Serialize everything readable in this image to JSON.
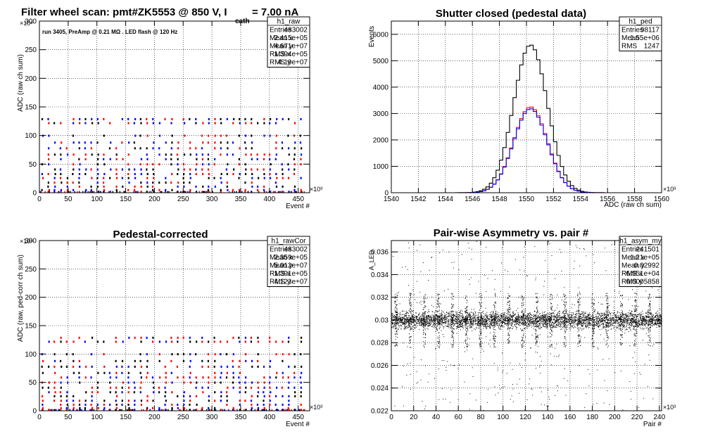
{
  "chart_data": [
    {
      "type": "scatter",
      "title_main": "Filter wheel scan: pmt#ZK5553 @   850 V, I",
      "title_sub": "cath",
      "title_tail": "  = 7.00 nA",
      "note": "run 3405, PreAmp @ 0.21 MΩ . LED flash @  120 Hz",
      "xlabel": "Event #",
      "ylabel": "ADC (raw ch sum)",
      "x_multiplier": "×10³",
      "y_multiplier": "×10⁶",
      "xlim": [
        0,
        470
      ],
      "ylim": [
        0,
        300
      ],
      "xticks": [
        0,
        50,
        100,
        150,
        200,
        250,
        300,
        350,
        400,
        450
      ],
      "yticks": [
        0,
        50,
        100,
        150,
        200,
        250,
        300
      ],
      "grid": true,
      "levels": [
        1,
        4,
        10,
        17,
        25,
        32,
        40,
        49,
        58,
        66,
        77,
        87,
        99,
        121,
        128
      ],
      "colors": [
        "#0000ff",
        "#ff0000",
        "#000000"
      ],
      "stats": {
        "name": "h1_raw",
        "rows": [
          [
            "Entries",
            "483002"
          ],
          [
            "Mean x",
            "2.415e+05"
          ],
          [
            "Mean y",
            "4.671e+07"
          ],
          [
            "RMS x",
            "1.394e+05"
          ],
          [
            "RMS y",
            "4.19e+07"
          ]
        ]
      }
    },
    {
      "type": "line",
      "title_main": "Shutter closed (pedestal data)",
      "xlabel": "ADC (raw ch sum)",
      "ylabel": "Events",
      "x_multiplier": "×10³",
      "xlim": [
        1540,
        1560
      ],
      "ylim": [
        0,
        6500
      ],
      "xticks": [
        1540,
        1542,
        1544,
        1546,
        1548,
        1550,
        1552,
        1554,
        1556,
        1558,
        1560
      ],
      "yticks": [
        0,
        1000,
        2000,
        3000,
        4000,
        5000,
        6000
      ],
      "grid": true,
      "series": [
        {
          "color": "#000000",
          "peak": 5600,
          "mean": 1550.3,
          "sigma": 1.25
        },
        {
          "color": "#ff0000",
          "peak": 3250,
          "mean": 1550.3,
          "sigma": 1.25
        },
        {
          "color": "#0000ff",
          "peak": 3180,
          "mean": 1550.3,
          "sigma": 1.25
        }
      ],
      "stats": {
        "name": "h1_ped",
        "rows": [
          [
            "Entries",
            "98117"
          ],
          [
            "Mean",
            "1.55e+06"
          ],
          [
            "RMS",
            "1247"
          ]
        ]
      }
    },
    {
      "type": "scatter",
      "title_main": "Pedestal-corrected",
      "xlabel": "Event #",
      "ylabel": "ADC (raw, ped-corr ch sum)",
      "x_multiplier": "×10³",
      "y_multiplier": "×10⁶",
      "xlim": [
        0,
        470
      ],
      "ylim": [
        0,
        300
      ],
      "xticks": [
        0,
        50,
        100,
        150,
        200,
        250,
        300,
        350,
        400,
        450
      ],
      "yticks": [
        0,
        50,
        100,
        150,
        200,
        250,
        300
      ],
      "grid": true,
      "levels": [
        1,
        4,
        10,
        17,
        25,
        32,
        40,
        49,
        58,
        66,
        77,
        87,
        99,
        121,
        128
      ],
      "colors": [
        "#0000ff",
        "#ff0000",
        "#000000"
      ],
      "stats": {
        "name": "h1_rawCor",
        "rows": [
          [
            "Entries",
            "483002"
          ],
          [
            "Mean x",
            "2.359e+05"
          ],
          [
            "Mean y",
            "5.012e+07"
          ],
          [
            "RMS x",
            "1.391e+05"
          ],
          [
            "RMS y",
            "4.123e+07"
          ]
        ]
      }
    },
    {
      "type": "scatter",
      "title_main": "Pair-wise Asymmetry vs. pair #",
      "xlabel": "Pair #",
      "ylabel": "A_LED",
      "x_multiplier": "×10³",
      "xlim": [
        0,
        242
      ],
      "ylim": [
        0.022,
        0.037
      ],
      "xticks": [
        0,
        20,
        40,
        60,
        80,
        100,
        120,
        140,
        160,
        180,
        200,
        220,
        240
      ],
      "yticks": [
        0.022,
        0.024,
        0.026,
        0.028,
        0.03,
        0.032,
        0.034,
        0.036
      ],
      "grid": true,
      "band_center": 0.03,
      "band_halfwidth": 0.0006,
      "spike_period": 12.6,
      "spike_count": 19,
      "stats": {
        "name": "h1_asym_my",
        "rows": [
          [
            "Entries",
            "241501"
          ],
          [
            "Mean x",
            "1.21e+05"
          ],
          [
            "Mean y",
            "0.02992"
          ],
          [
            "RMS x",
            "6.951e+04"
          ],
          [
            "RMS y",
            "0.0005858"
          ]
        ]
      }
    }
  ]
}
